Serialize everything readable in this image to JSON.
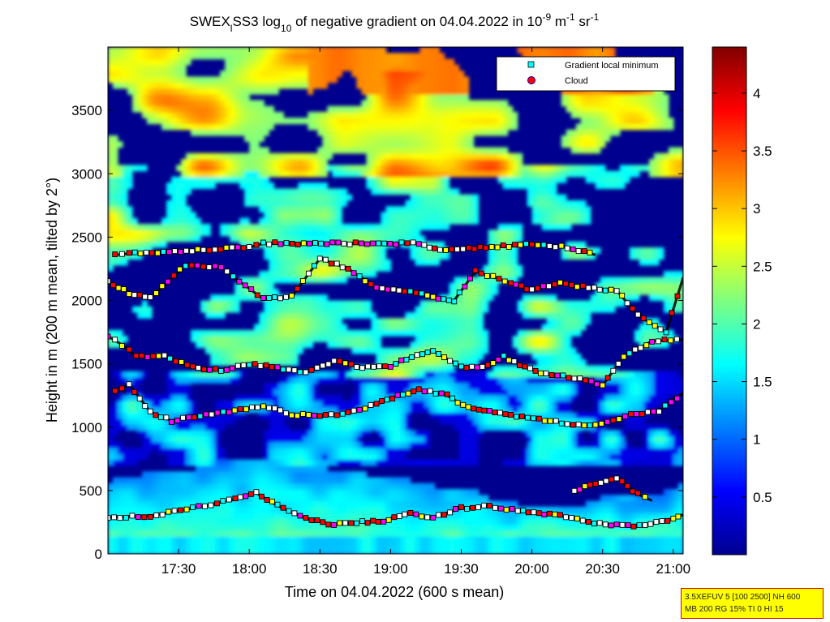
{
  "chart_data": {
    "type": "heatmap",
    "title": {
      "prefix": "SWEX",
      "sub_l": "l",
      "mid1": "SS3 log",
      "sub_10": "10",
      "mid2": " of negative gradient on 04.04.2022 in 10",
      "sup_m9": "-9",
      "mid3": " m",
      "sup_m1a": "-1",
      "mid4": " sr",
      "sup_m1b": "-1"
    },
    "xlabel": "Time on 04.04.2022 (600 s mean)",
    "ylabel": "Height in m (200 m mean, tilted by 2°)",
    "x_range_hours": [
      17.0,
      21.07
    ],
    "y_range": [
      0,
      4000
    ],
    "x_ticks": [
      {
        "value": 17.5,
        "label": "17:30"
      },
      {
        "value": 18.0,
        "label": "18:00"
      },
      {
        "value": 18.5,
        "label": "18:30"
      },
      {
        "value": 19.0,
        "label": "19:00"
      },
      {
        "value": 19.5,
        "label": "19:30"
      },
      {
        "value": 20.0,
        "label": "20:00"
      },
      {
        "value": 20.5,
        "label": "20:30"
      },
      {
        "value": 21.0,
        "label": "21:00"
      }
    ],
    "y_ticks": [
      {
        "value": 0,
        "label": "0"
      },
      {
        "value": 500,
        "label": "500"
      },
      {
        "value": 1000,
        "label": "1000"
      },
      {
        "value": 1500,
        "label": "1500"
      },
      {
        "value": 2000,
        "label": "2000"
      },
      {
        "value": 2500,
        "label": "2500"
      },
      {
        "value": 3000,
        "label": "3000"
      },
      {
        "value": 3500,
        "label": "3500"
      }
    ],
    "colorbar": {
      "range": [
        0,
        4.4
      ],
      "ticks": [
        {
          "value": 0.5,
          "label": "0.5"
        },
        {
          "value": 1.0,
          "label": "1"
        },
        {
          "value": 1.5,
          "label": "1.5"
        },
        {
          "value": 2.0,
          "label": "2"
        },
        {
          "value": 2.5,
          "label": "2.5"
        },
        {
          "value": 3.0,
          "label": "3"
        },
        {
          "value": 3.5,
          "label": "3.5"
        },
        {
          "value": 4.0,
          "label": "4"
        }
      ],
      "colormap": "jet"
    },
    "legend": {
      "placement": "top-right",
      "entries": [
        {
          "name": "Gradient local minimum",
          "color": "#00ffff",
          "marker": "square"
        },
        {
          "name": "Cloud",
          "color": "#ff0000",
          "marker": "circle"
        }
      ]
    },
    "layers": [
      {
        "name": "Gradient local minimum (near ground)",
        "v": 2.2,
        "points": [
          [
            17.0,
            290
          ],
          [
            17.3,
            300
          ],
          [
            17.6,
            360
          ],
          [
            17.9,
            430
          ],
          [
            18.05,
            480
          ],
          [
            18.2,
            380
          ],
          [
            18.4,
            280
          ],
          [
            18.6,
            230
          ],
          [
            18.8,
            250
          ],
          [
            18.95,
            260
          ],
          [
            19.1,
            320
          ],
          [
            19.3,
            290
          ],
          [
            19.5,
            360
          ],
          [
            19.7,
            380
          ],
          [
            19.9,
            340
          ],
          [
            20.05,
            320
          ],
          [
            20.2,
            300
          ],
          [
            20.4,
            250
          ],
          [
            20.6,
            230
          ],
          [
            20.8,
            220
          ],
          [
            21.0,
            280
          ],
          [
            21.07,
            310
          ]
        ]
      },
      {
        "name": "Gradient local minimum (layer ~500 m)",
        "v": 1.6,
        "points": [
          [
            20.3,
            500
          ],
          [
            20.45,
            550
          ],
          [
            20.6,
            600
          ],
          [
            20.75,
            470
          ],
          [
            20.85,
            420
          ]
        ]
      },
      {
        "name": "Gradient local minimum (layer ~1100 m)",
        "v": 1.7,
        "points": [
          [
            17.05,
            1280
          ],
          [
            17.15,
            1340
          ],
          [
            17.3,
            1120
          ],
          [
            17.45,
            1050
          ],
          [
            18.1,
            1170
          ],
          [
            18.3,
            1100
          ],
          [
            18.5,
            1090
          ],
          [
            18.7,
            1110
          ],
          [
            18.9,
            1180
          ],
          [
            19.05,
            1250
          ],
          [
            19.2,
            1300
          ],
          [
            19.4,
            1250
          ],
          [
            19.55,
            1150
          ],
          [
            19.7,
            1120
          ],
          [
            19.85,
            1090
          ],
          [
            20.05,
            1060
          ],
          [
            20.25,
            1030
          ],
          [
            20.45,
            1010
          ],
          [
            20.7,
            1100
          ],
          [
            20.9,
            1130
          ],
          [
            21.07,
            1270
          ]
        ]
      },
      {
        "name": "Gradient local minimum (layer ~1500 m)",
        "v": 2.0,
        "points": [
          [
            17.0,
            1720
          ],
          [
            17.1,
            1650
          ],
          [
            17.2,
            1560
          ],
          [
            17.4,
            1560
          ],
          [
            17.6,
            1470
          ],
          [
            17.8,
            1450
          ],
          [
            18.0,
            1500
          ],
          [
            18.2,
            1470
          ],
          [
            18.4,
            1430
          ],
          [
            18.6,
            1520
          ],
          [
            18.8,
            1470
          ],
          [
            19.0,
            1480
          ],
          [
            19.15,
            1560
          ],
          [
            19.3,
            1600
          ],
          [
            19.5,
            1480
          ],
          [
            19.65,
            1470
          ],
          [
            19.8,
            1560
          ],
          [
            19.95,
            1470
          ],
          [
            20.1,
            1420
          ],
          [
            20.3,
            1390
          ],
          [
            20.5,
            1330
          ],
          [
            20.65,
            1560
          ],
          [
            20.85,
            1680
          ],
          [
            21.07,
            1690
          ]
        ]
      },
      {
        "name": "Gradient local minimum (layer ~2100 m)",
        "v": 2.3,
        "points": [
          [
            17.0,
            2150
          ],
          [
            17.15,
            2060
          ],
          [
            17.3,
            2020
          ],
          [
            17.55,
            2280
          ],
          [
            17.8,
            2260
          ],
          [
            18.1,
            2010
          ],
          [
            18.3,
            2030
          ],
          [
            18.5,
            2330
          ],
          [
            18.7,
            2250
          ],
          [
            18.9,
            2100
          ],
          [
            19.1,
            2080
          ],
          [
            19.3,
            2030
          ],
          [
            19.45,
            2000
          ],
          [
            19.6,
            2230
          ],
          [
            19.85,
            2140
          ],
          [
            20.0,
            2080
          ],
          [
            20.2,
            2140
          ],
          [
            20.4,
            2100
          ],
          [
            20.6,
            2080
          ],
          [
            20.75,
            1880
          ],
          [
            20.95,
            1750
          ],
          [
            21.07,
            2180
          ]
        ]
      },
      {
        "name": "Gradient local minimum (layer ~2400 m)",
        "v": 2.2,
        "points": [
          [
            17.05,
            2360
          ],
          [
            17.15,
            2370
          ],
          [
            18.0,
            2420
          ],
          [
            18.1,
            2450
          ],
          [
            19.2,
            2450
          ],
          [
            19.35,
            2400
          ],
          [
            20.0,
            2440
          ],
          [
            20.25,
            2420
          ],
          [
            20.45,
            2360
          ]
        ]
      }
    ]
  },
  "info_box": {
    "line1": "3.5XEFUV 5 [100 2500] NH 600",
    "line2": "MB 200 RG 15% TI 0 HI 15"
  }
}
